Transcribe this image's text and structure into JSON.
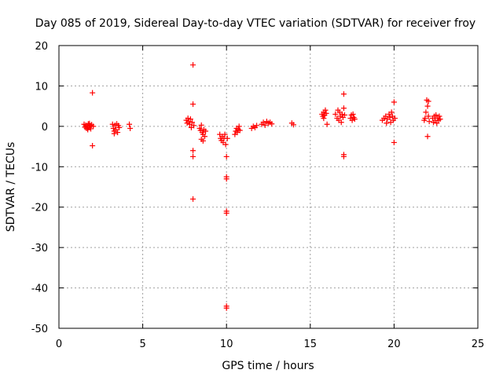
{
  "chart_data": {
    "type": "scatter",
    "title": "Day 085 of 2019, Sidereal Day-to-day VTEC variation (SDTVAR) for receiver froy",
    "xlabel": "GPS time / hours",
    "ylabel": "SDTVAR / TECUs",
    "xlim": [
      0,
      25
    ],
    "ylim": [
      -50,
      20
    ],
    "xticks": [
      0,
      5,
      10,
      15,
      20,
      25
    ],
    "yticks": [
      -50,
      -40,
      -30,
      -20,
      -10,
      0,
      10,
      20
    ],
    "grid": true,
    "marker": "+",
    "color": "#ff0000",
    "series": [
      {
        "name": "SDTVAR",
        "points": [
          [
            1.5,
            0.5
          ],
          [
            1.55,
            -0.2
          ],
          [
            1.6,
            0.3
          ],
          [
            1.65,
            -0.5
          ],
          [
            1.7,
            0.0
          ],
          [
            1.75,
            0.6
          ],
          [
            1.8,
            -0.3
          ],
          [
            1.85,
            0.2
          ],
          [
            1.9,
            -0.6
          ],
          [
            1.95,
            0.4
          ],
          [
            2.0,
            8.3
          ],
          [
            2.0,
            -4.8
          ],
          [
            2.05,
            0.0
          ],
          [
            1.72,
            -0.8
          ],
          [
            1.82,
            0.7
          ],
          [
            3.2,
            0.5
          ],
          [
            3.25,
            -0.5
          ],
          [
            3.3,
            -1.2
          ],
          [
            3.35,
            0.3
          ],
          [
            3.4,
            -0.8
          ],
          [
            3.45,
            0.6
          ],
          [
            3.5,
            -1.5
          ],
          [
            3.55,
            0.2
          ],
          [
            3.6,
            -0.3
          ],
          [
            3.3,
            -1.8
          ],
          [
            4.2,
            0.5
          ],
          [
            4.25,
            -0.5
          ],
          [
            7.6,
            1.5
          ],
          [
            7.65,
            0.8
          ],
          [
            7.7,
            2.0
          ],
          [
            7.75,
            1.2
          ],
          [
            7.8,
            0.5
          ],
          [
            7.85,
            1.8
          ],
          [
            7.9,
            -0.3
          ],
          [
            7.95,
            1.0
          ],
          [
            8.0,
            15.2
          ],
          [
            8.0,
            5.5
          ],
          [
            8.0,
            -6.0
          ],
          [
            8.0,
            -7.5
          ],
          [
            8.0,
            -18.0
          ],
          [
            8.05,
            0.2
          ],
          [
            8.4,
            -0.5
          ],
          [
            8.45,
            -1.0
          ],
          [
            8.5,
            0.3
          ],
          [
            8.55,
            -1.5
          ],
          [
            8.6,
            -2.0
          ],
          [
            8.65,
            -0.8
          ],
          [
            8.7,
            -2.5
          ],
          [
            8.5,
            -3.2
          ],
          [
            8.6,
            -3.6
          ],
          [
            8.75,
            -1.2
          ],
          [
            9.6,
            -2.0
          ],
          [
            9.65,
            -3.0
          ],
          [
            9.7,
            -3.5
          ],
          [
            9.75,
            -2.5
          ],
          [
            9.8,
            -4.0
          ],
          [
            9.85,
            -3.0
          ],
          [
            9.9,
            -2.0
          ],
          [
            9.95,
            -4.5
          ],
          [
            10.0,
            -7.5
          ],
          [
            10.0,
            -13.0
          ],
          [
            10.0,
            -12.5
          ],
          [
            10.0,
            -21.0
          ],
          [
            10.0,
            -21.5
          ],
          [
            10.0,
            -44.5
          ],
          [
            10.0,
            -45.0
          ],
          [
            10.05,
            -3.0
          ],
          [
            10.5,
            -2.0
          ],
          [
            10.55,
            -1.2
          ],
          [
            10.6,
            -0.5
          ],
          [
            10.65,
            -1.5
          ],
          [
            10.7,
            -0.8
          ],
          [
            10.75,
            0.0
          ],
          [
            10.8,
            -1.0
          ],
          [
            11.5,
            -0.5
          ],
          [
            11.6,
            0.0
          ],
          [
            11.7,
            -0.3
          ],
          [
            11.8,
            0.2
          ],
          [
            12.1,
            0.5
          ],
          [
            12.2,
            1.0
          ],
          [
            12.3,
            0.3
          ],
          [
            12.4,
            1.2
          ],
          [
            12.5,
            0.8
          ],
          [
            12.6,
            1.0
          ],
          [
            12.7,
            0.6
          ],
          [
            13.9,
            0.8
          ],
          [
            14.0,
            0.4
          ],
          [
            15.7,
            3.0
          ],
          [
            15.75,
            2.5
          ],
          [
            15.8,
            3.5
          ],
          [
            15.85,
            2.8
          ],
          [
            15.9,
            4.0
          ],
          [
            15.95,
            3.2
          ],
          [
            16.0,
            0.5
          ],
          [
            15.8,
            2.0
          ],
          [
            16.5,
            3.0
          ],
          [
            16.6,
            2.0
          ],
          [
            16.65,
            4.0
          ],
          [
            16.7,
            1.5
          ],
          [
            16.75,
            3.5
          ],
          [
            16.8,
            2.5
          ],
          [
            16.85,
            1.0
          ],
          [
            16.9,
            3.0
          ],
          [
            16.95,
            2.2
          ],
          [
            17.0,
            8.0
          ],
          [
            17.0,
            4.5
          ],
          [
            17.0,
            -7.0
          ],
          [
            17.0,
            -7.5
          ],
          [
            17.05,
            2.8
          ],
          [
            17.4,
            2.0
          ],
          [
            17.45,
            2.8
          ],
          [
            17.5,
            1.5
          ],
          [
            17.55,
            3.0
          ],
          [
            17.6,
            2.2
          ],
          [
            17.65,
            1.8
          ],
          [
            19.3,
            1.5
          ],
          [
            19.4,
            2.0
          ],
          [
            19.5,
            2.5
          ],
          [
            19.6,
            1.8
          ],
          [
            19.7,
            3.0
          ],
          [
            19.75,
            2.2
          ],
          [
            19.8,
            1.0
          ],
          [
            19.85,
            3.5
          ],
          [
            19.9,
            2.5
          ],
          [
            19.95,
            1.5
          ],
          [
            20.0,
            6.0
          ],
          [
            20.0,
            -4.0
          ],
          [
            20.05,
            2.0
          ],
          [
            19.55,
            0.8
          ],
          [
            21.8,
            1.5
          ],
          [
            21.85,
            2.0
          ],
          [
            21.9,
            3.5
          ],
          [
            21.95,
            6.5
          ],
          [
            22.0,
            5.0
          ],
          [
            22.0,
            -2.5
          ],
          [
            22.05,
            2.5
          ],
          [
            22.1,
            1.2
          ],
          [
            22.05,
            6.2
          ],
          [
            22.3,
            2.0
          ],
          [
            22.35,
            1.0
          ],
          [
            22.4,
            2.5
          ],
          [
            22.45,
            1.5
          ],
          [
            22.5,
            2.8
          ],
          [
            22.55,
            0.8
          ],
          [
            22.6,
            2.0
          ],
          [
            22.65,
            1.5
          ],
          [
            22.7,
            2.5
          ],
          [
            22.75,
            1.8
          ]
        ]
      }
    ]
  }
}
